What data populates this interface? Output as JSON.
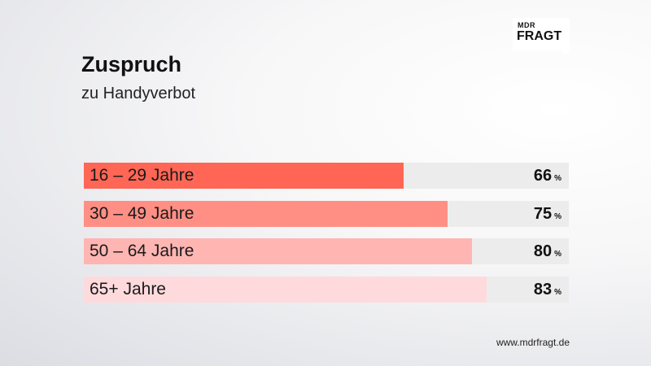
{
  "logo": {
    "line1": "MDR",
    "line2": "FRAGT"
  },
  "title": "Zuspruch",
  "subtitle": "zu Handyverbot",
  "footer": "www.mdrfragt.de",
  "colors": [
    "#ff6655",
    "#ff8f84",
    "#ffb6b3",
    "#fedadd"
  ],
  "chart_data": {
    "type": "bar",
    "orientation": "horizontal",
    "categories": [
      "16 – 29 Jahre",
      "30 – 49 Jahre",
      "50 – 64 Jahre",
      "65+ Jahre"
    ],
    "values": [
      66,
      75,
      80,
      83
    ],
    "unit": "%",
    "xlim": [
      0,
      100
    ],
    "title": "Zuspruch",
    "subtitle": "zu Handyverbot",
    "grid": false,
    "legend": "none"
  }
}
